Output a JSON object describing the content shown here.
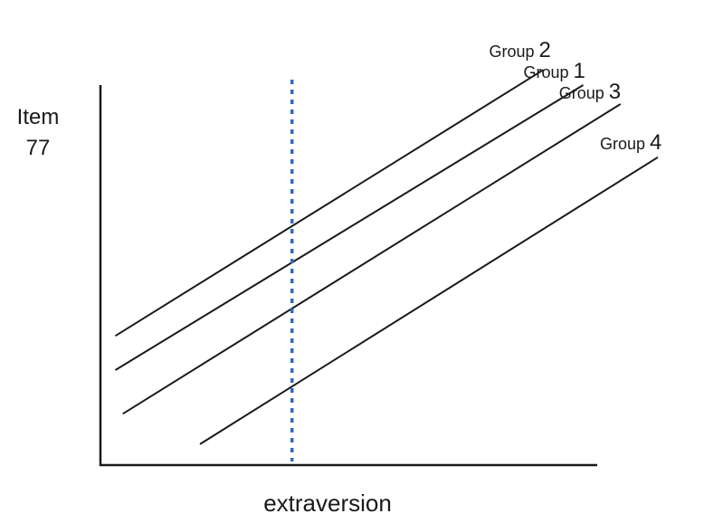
{
  "chart_data": {
    "type": "line",
    "ylabel": [
      "Item",
      "77"
    ],
    "xlabel": "extraversion",
    "xlim": [
      0,
      10
    ],
    "ylim": [
      0,
      10
    ],
    "series": [
      {
        "name_prefix": "Group",
        "name_number": "2",
        "x": [
          0.3,
          8.9
        ],
        "y": [
          3.4,
          10.4
        ]
      },
      {
        "name_prefix": "Group",
        "name_number": "1",
        "x": [
          0.3,
          9.7
        ],
        "y": [
          2.5,
          10.0
        ]
      },
      {
        "name_prefix": "Group",
        "name_number": "3",
        "x": [
          0.45,
          10.45
        ],
        "y": [
          1.35,
          9.5
        ]
      },
      {
        "name_prefix": "Group",
        "name_number": "4",
        "x": [
          2.0,
          11.2
        ],
        "y": [
          0.55,
          8.1
        ]
      }
    ],
    "reference_line": {
      "x": 3.85,
      "style": "dotted",
      "color": "#2f6cc0"
    },
    "line_color": "#1a1a1a",
    "axis_color": "#1a1a1a"
  }
}
